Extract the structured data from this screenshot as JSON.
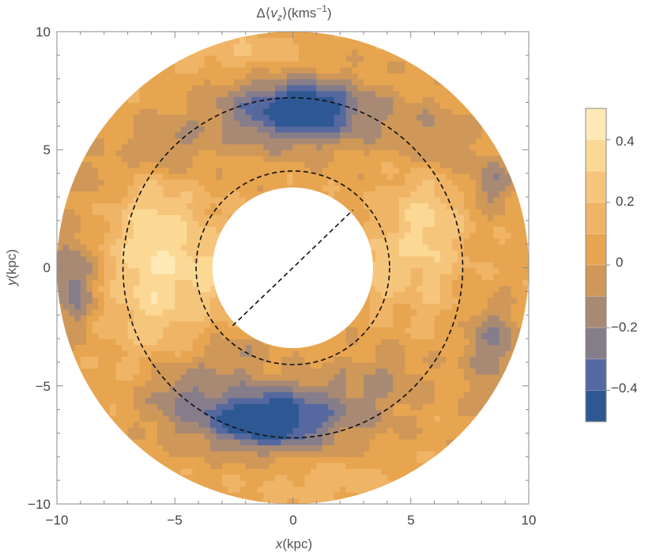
{
  "chart_data": {
    "type": "heatmap",
    "title_prefix": "Δ⟨",
    "title_var": "v",
    "title_sub": "z",
    "title_mid": "⟩(kms",
    "title_sup": "−1",
    "title_suffix": ")",
    "xlabel_var": "x",
    "xlabel_unit": "(kpc)",
    "ylabel_var": "y",
    "ylabel_unit": "(kpc)",
    "xlim": [
      -10,
      10
    ],
    "ylim": [
      -10,
      10
    ],
    "x_ticks": [
      -10,
      -5,
      0,
      5,
      10
    ],
    "y_ticks": [
      -10,
      -5,
      0,
      5,
      10
    ],
    "x_tick_labels": [
      "−10",
      "−5",
      "0",
      "5",
      "10"
    ],
    "y_tick_labels": [
      "−10",
      "−5",
      "0",
      "5",
      "10"
    ],
    "annulus": {
      "r_inner_kpc": 3.4,
      "r_outer_kpc": 10.0
    },
    "dashed_circles_kpc": [
      4.1,
      7.2
    ],
    "dashed_line_kpc": {
      "from": [
        -2.55,
        -2.45
      ],
      "to": [
        2.55,
        2.45
      ]
    },
    "colorbar": {
      "range": [
        -0.5,
        0.5
      ],
      "ticks": [
        0.4,
        0.2,
        0,
        -0.2,
        -0.4
      ],
      "tick_labels": [
        "0.4",
        "0.2",
        "0",
        "−0.2",
        "−0.4"
      ],
      "levels": [
        {
          "min": 0.4,
          "max": 0.5,
          "color": "#fde9b5"
        },
        {
          "min": 0.3,
          "max": 0.4,
          "color": "#fbd995"
        },
        {
          "min": 0.2,
          "max": 0.3,
          "color": "#f6c57c"
        },
        {
          "min": 0.1,
          "max": 0.2,
          "color": "#efb466"
        },
        {
          "min": 0.0,
          "max": 0.1,
          "color": "#e7a550"
        },
        {
          "min": -0.1,
          "max": 0.0,
          "color": "#cf9858"
        },
        {
          "min": -0.2,
          "max": -0.1,
          "color": "#a88a74"
        },
        {
          "min": -0.3,
          "max": -0.2,
          "color": "#867d8a"
        },
        {
          "min": -0.4,
          "max": -0.3,
          "color": "#5668a0"
        },
        {
          "min": -0.5,
          "max": -0.4,
          "color": "#2e5893"
        }
      ]
    },
    "field_model": {
      "description": "Δ<v_z> pattern approximated by Gaussian blobs (kpc units); values summed with a small bias",
      "bias": 0.06,
      "blobs": [
        {
          "x": 0.2,
          "y": 6.6,
          "sx": 2.3,
          "sy": 1.0,
          "a": -0.52
        },
        {
          "x": 0.6,
          "y": 6.9,
          "sx": 1.0,
          "sy": 0.6,
          "a": -0.18
        },
        {
          "x": -0.9,
          "y": -6.3,
          "sx": 2.5,
          "sy": 1.0,
          "a": -0.52
        },
        {
          "x": -1.4,
          "y": -6.6,
          "sx": 1.1,
          "sy": 0.6,
          "a": -0.18
        },
        {
          "x": -5.8,
          "y": 0.3,
          "sx": 1.3,
          "sy": 3.0,
          "a": 0.34
        },
        {
          "x": 5.6,
          "y": 1.8,
          "sx": 1.1,
          "sy": 2.3,
          "a": 0.28
        },
        {
          "x": 6.0,
          "y": 5.2,
          "sx": 1.2,
          "sy": 1.2,
          "a": -0.22
        },
        {
          "x": -5.5,
          "y": 5.0,
          "sx": 1.3,
          "sy": 1.0,
          "a": -0.24
        },
        {
          "x": -4.9,
          "y": -5.0,
          "sx": 1.2,
          "sy": 1.1,
          "a": -0.22
        },
        {
          "x": 8.5,
          "y": -3.2,
          "sx": 0.9,
          "sy": 1.1,
          "a": -0.26
        },
        {
          "x": -9.3,
          "y": -0.6,
          "sx": 0.6,
          "sy": 1.4,
          "a": -0.32
        },
        {
          "x": 8.5,
          "y": 3.6,
          "sx": 0.7,
          "sy": 0.8,
          "a": -0.22
        },
        {
          "x": 3.8,
          "y": -4.6,
          "sx": 1.4,
          "sy": 1.0,
          "a": -0.14
        },
        {
          "x": -3.5,
          "y": 0.0,
          "sx": 0.7,
          "sy": 1.2,
          "a": 0.2
        },
        {
          "x": 3.6,
          "y": 0.0,
          "sx": 0.6,
          "sy": 1.0,
          "a": 0.18
        },
        {
          "x": -8.2,
          "y": 3.8,
          "sx": 0.9,
          "sy": 0.8,
          "a": -0.1
        },
        {
          "x": -2.0,
          "y": 9.1,
          "sx": 1.8,
          "sy": 0.6,
          "a": 0.14
        },
        {
          "x": 1.5,
          "y": -9.0,
          "sx": 2.0,
          "sy": 0.6,
          "a": 0.12
        },
        {
          "x": 8.5,
          "y": -6.0,
          "sx": 0.8,
          "sy": 0.8,
          "a": -0.12
        },
        {
          "x": -2.4,
          "y": -3.7,
          "sx": 0.9,
          "sy": 0.6,
          "a": -0.14
        }
      ]
    }
  }
}
